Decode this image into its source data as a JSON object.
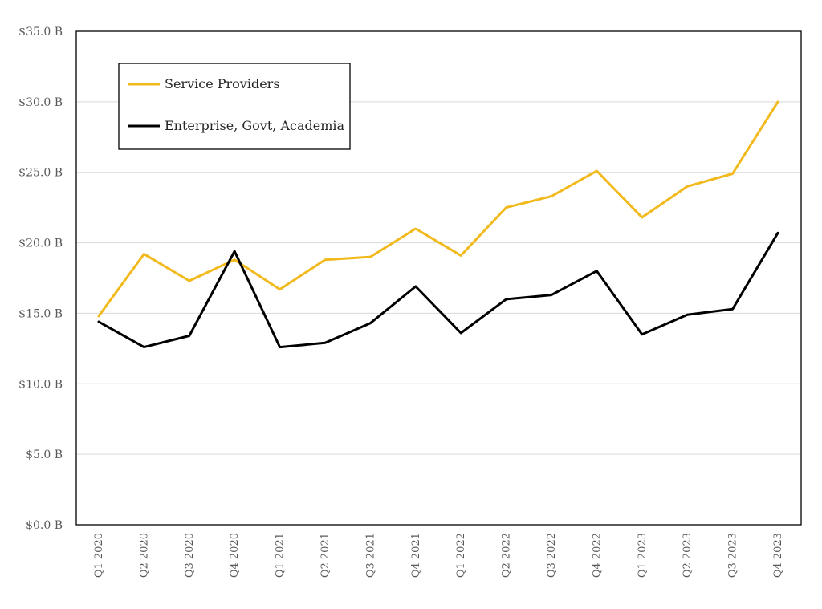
{
  "chart_data": {
    "type": "line",
    "categories": [
      "Q1 2020",
      "Q2 2020",
      "Q3 2020",
      "Q4 2020",
      "Q1 2021",
      "Q2 2021",
      "Q3 2021",
      "Q4 2021",
      "Q1 2022",
      "Q2 2022",
      "Q3 2022",
      "Q4 2022",
      "Q1 2023",
      "Q2 2023",
      "Q3 2023",
      "Q4 2023"
    ],
    "series": [
      {
        "name": "Service Providers",
        "color": "#F2B91C",
        "values": [
          14.8,
          19.2,
          17.3,
          18.8,
          16.7,
          18.8,
          19.0,
          21.0,
          19.1,
          22.5,
          23.3,
          25.1,
          21.8,
          24.0,
          24.9,
          30.0
        ]
      },
      {
        "name": "Enterprise, Govt, Academia",
        "color": "#000000",
        "values": [
          14.4,
          12.6,
          13.4,
          19.4,
          12.6,
          12.9,
          14.3,
          16.9,
          13.6,
          16.0,
          16.3,
          18.0,
          13.5,
          14.9,
          15.3,
          20.7
        ]
      }
    ],
    "ylim": [
      0,
      35
    ],
    "yticks": [
      0,
      5,
      10,
      15,
      20,
      25,
      30,
      35
    ],
    "ytick_labels": [
      "$0.0 B",
      "$5.0 B",
      "$10.0 B",
      "$15.0 B",
      "$20.0 B",
      "$25.0 B",
      "$30.0 B",
      "$35.0 B"
    ],
    "grid": true,
    "legend": "top-left",
    "title": "",
    "xlabel": "",
    "ylabel": ""
  }
}
